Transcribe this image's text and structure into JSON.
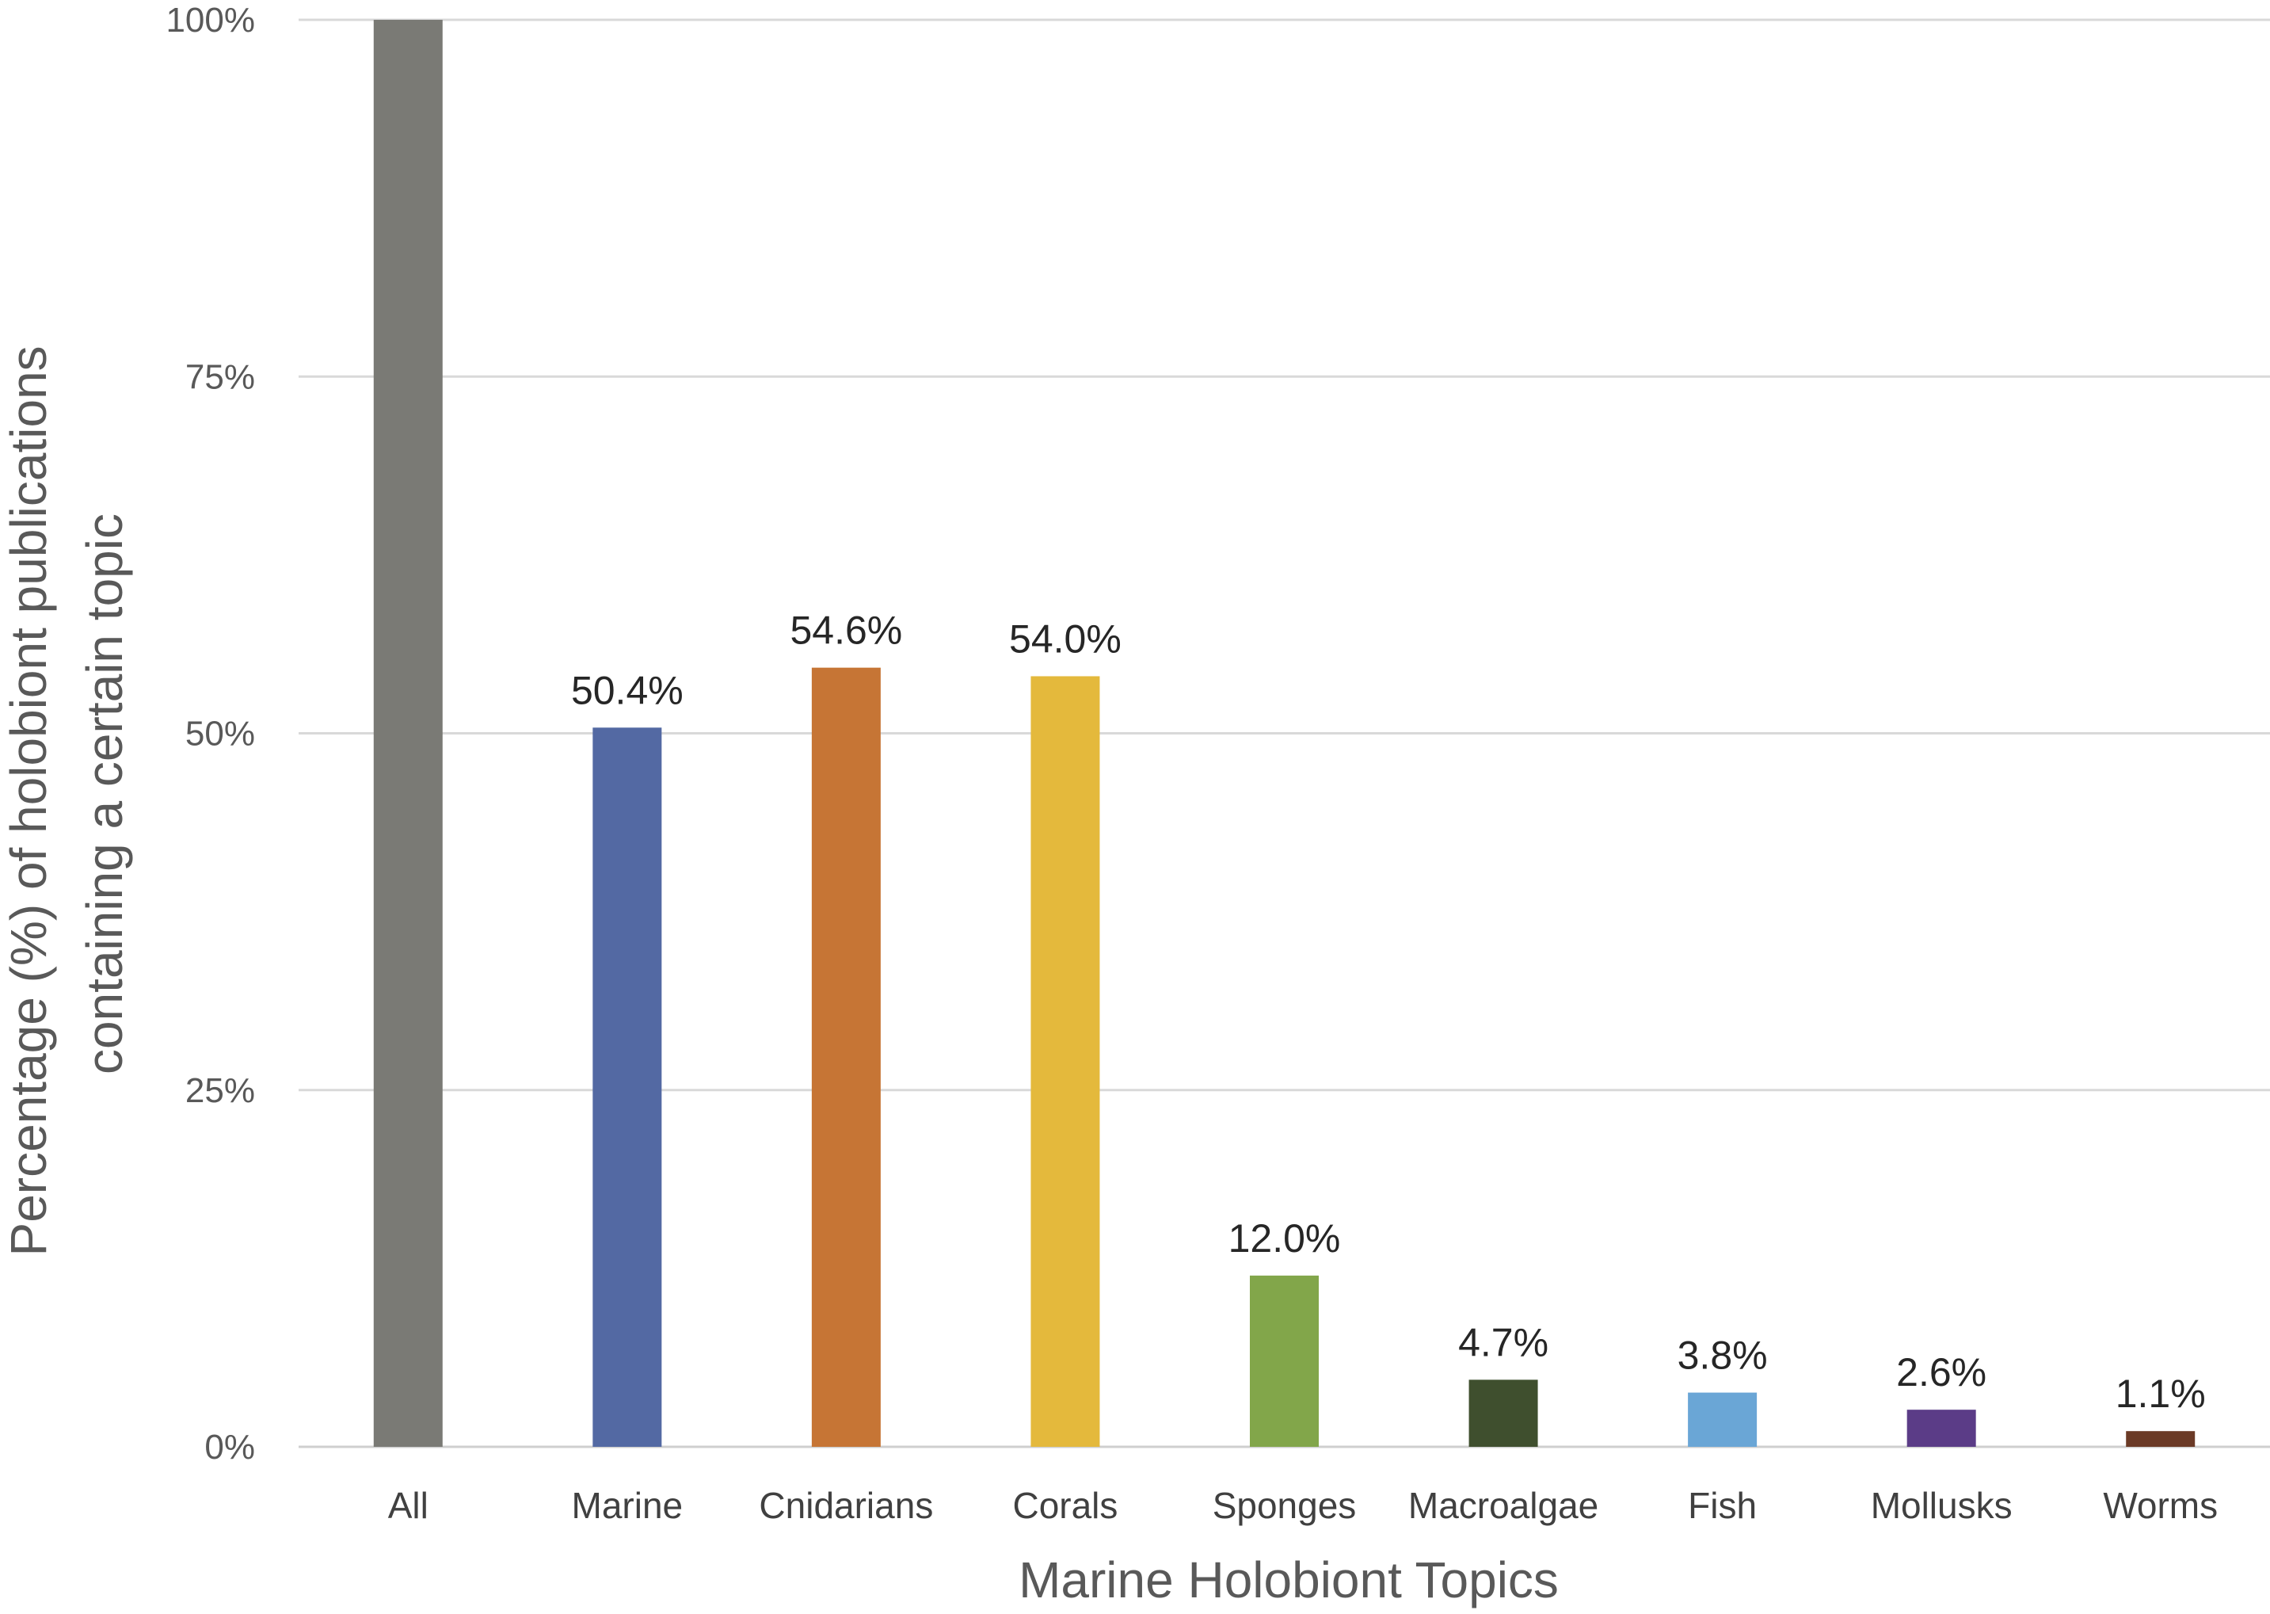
{
  "chart_data": {
    "type": "bar",
    "title": "",
    "xlabel": "Marine Holobiont Topics",
    "ylabel_lines": [
      "Percentage (%) of holobiont publications",
      "containing a certain topic"
    ],
    "categories": [
      "All",
      "Marine",
      "Cnidarians",
      "Corals",
      "Sponges",
      "Macroalgae",
      "Fish",
      "Mollusks",
      "Worms"
    ],
    "values": [
      100,
      50.4,
      54.6,
      54.0,
      12.0,
      4.7,
      3.8,
      2.6,
      1.1
    ],
    "data_labels": [
      "",
      "50.4%",
      "54.6%",
      "54.0%",
      "12.0%",
      "4.7%",
      "3.8%",
      "2.6%",
      "1.1%"
    ],
    "colors": [
      "#7a7a75",
      "#5369a3",
      "#c67535",
      "#e4b93c",
      "#82a64a",
      "#3f4f2e",
      "#6aa6d6",
      "#5b3c87",
      "#6b3a26"
    ],
    "yticks": [
      0,
      25,
      50,
      75,
      100
    ],
    "ytick_labels": [
      "0%",
      "25%",
      "50%",
      "75%",
      "100%"
    ],
    "ylim": [
      0,
      100
    ],
    "grid": true,
    "legend": "none"
  }
}
